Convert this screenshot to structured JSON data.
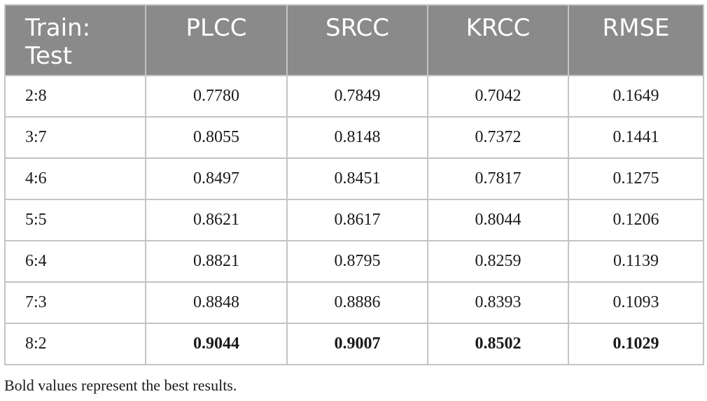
{
  "table": {
    "headers": [
      "Train:\nTest",
      "PLCC",
      "SRCC",
      "KRCC",
      "RMSE"
    ],
    "rows": [
      [
        "2:8",
        "0.7780",
        "0.7849",
        "0.7042",
        "0.1649"
      ],
      [
        "3:7",
        "0.8055",
        "0.8148",
        "0.7372",
        "0.1441"
      ],
      [
        "4:6",
        "0.8497",
        "0.8451",
        "0.7817",
        "0.1275"
      ],
      [
        "5:5",
        "0.8621",
        "0.8617",
        "0.8044",
        "0.1206"
      ],
      [
        "6:4",
        "0.8821",
        "0.8795",
        "0.8259",
        "0.1139"
      ],
      [
        "7:3",
        "0.8848",
        "0.8886",
        "0.8393",
        "0.1093"
      ],
      [
        "8:2",
        "0.9044",
        "0.9007",
        "0.8502",
        "0.1029"
      ]
    ],
    "bold_row_index": 6
  },
  "footnote": "Bold values represent the best results.",
  "colors": {
    "header_bg": "#8a8a8a",
    "header_text": "#ffffff",
    "border": "#c4c4c4",
    "body_text": "#1a1a1a"
  }
}
